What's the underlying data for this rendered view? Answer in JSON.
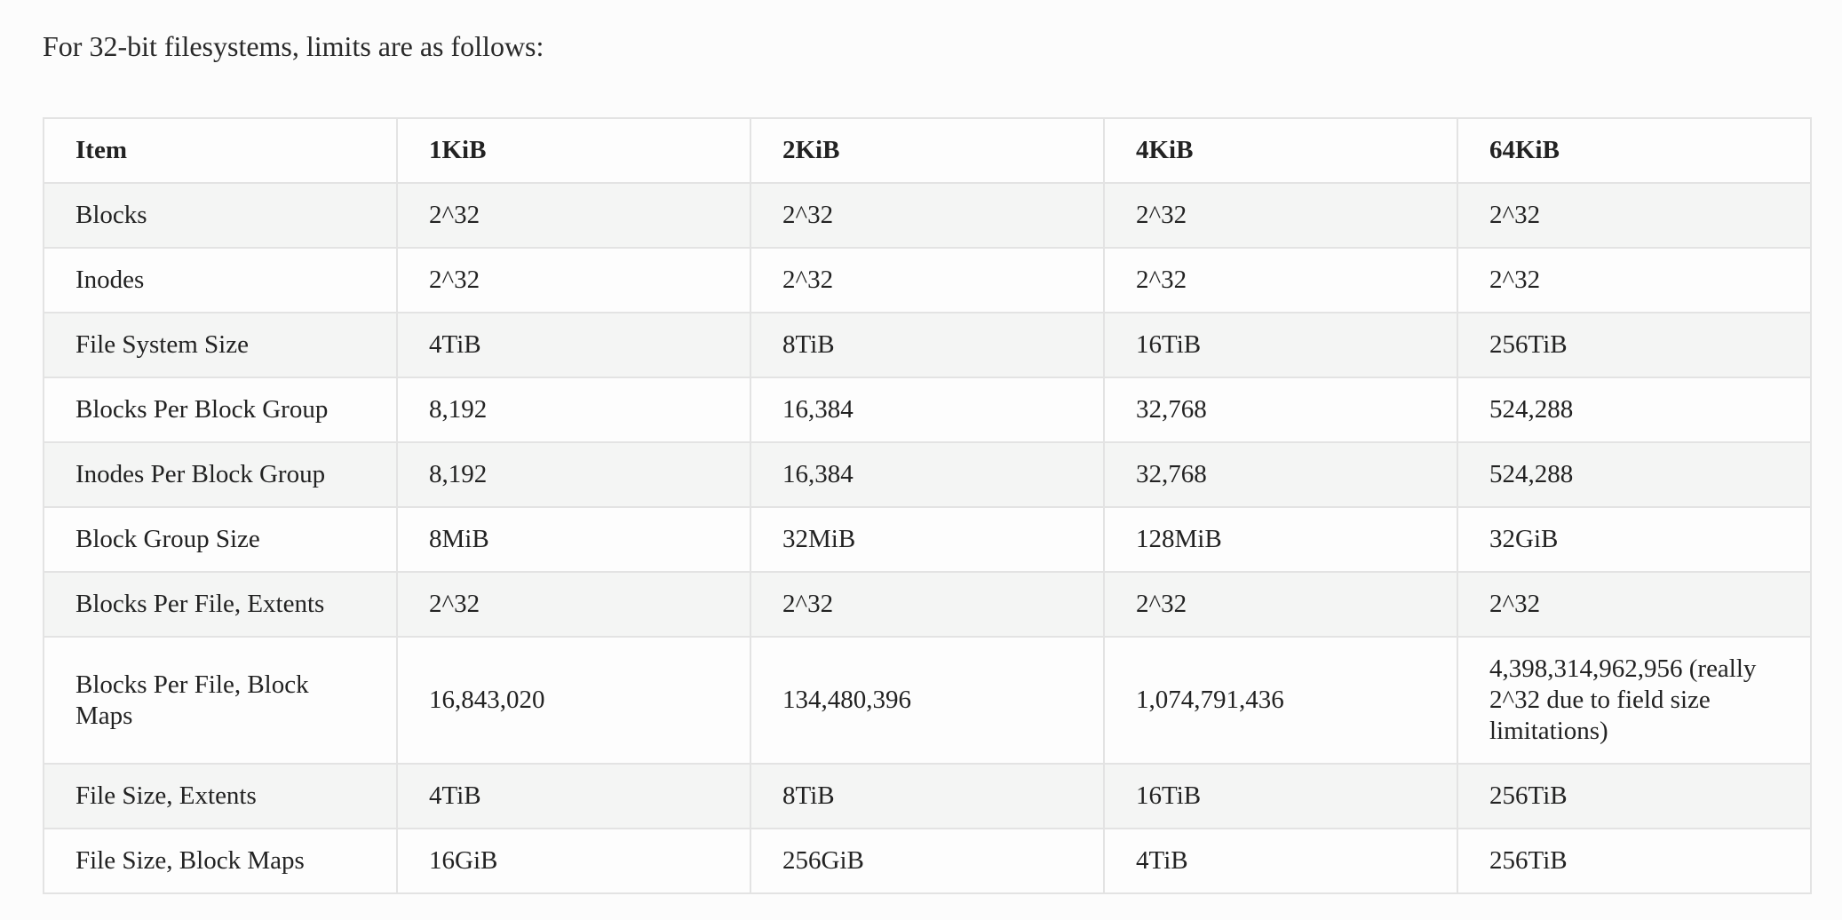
{
  "intro_text": "For 32-bit filesystems, limits are as follows:",
  "table": {
    "headers": [
      "Item",
      "1KiB",
      "2KiB",
      "4KiB",
      "64KiB"
    ],
    "rows": [
      [
        "Blocks",
        "2^32",
        "2^32",
        "2^32",
        "2^32"
      ],
      [
        "Inodes",
        "2^32",
        "2^32",
        "2^32",
        "2^32"
      ],
      [
        "File System Size",
        "4TiB",
        "8TiB",
        "16TiB",
        "256TiB"
      ],
      [
        "Blocks Per Block Group",
        "8,192",
        "16,384",
        "32,768",
        "524,288"
      ],
      [
        "Inodes Per Block Group",
        "8,192",
        "16,384",
        "32,768",
        "524,288"
      ],
      [
        "Block Group Size",
        "8MiB",
        "32MiB",
        "128MiB",
        "32GiB"
      ],
      [
        "Blocks Per File, Extents",
        "2^32",
        "2^32",
        "2^32",
        "2^32"
      ],
      [
        "Blocks Per File, Block Maps",
        "16,843,020",
        "134,480,396",
        "1,074,791,436",
        "4,398,314,962,956 (really 2^32 due to field size limitations)"
      ],
      [
        "File Size, Extents",
        "4TiB",
        "8TiB",
        "16TiB",
        "256TiB"
      ],
      [
        "File Size, Block Maps",
        "16GiB",
        "256GiB",
        "4TiB",
        "256TiB"
      ]
    ]
  }
}
